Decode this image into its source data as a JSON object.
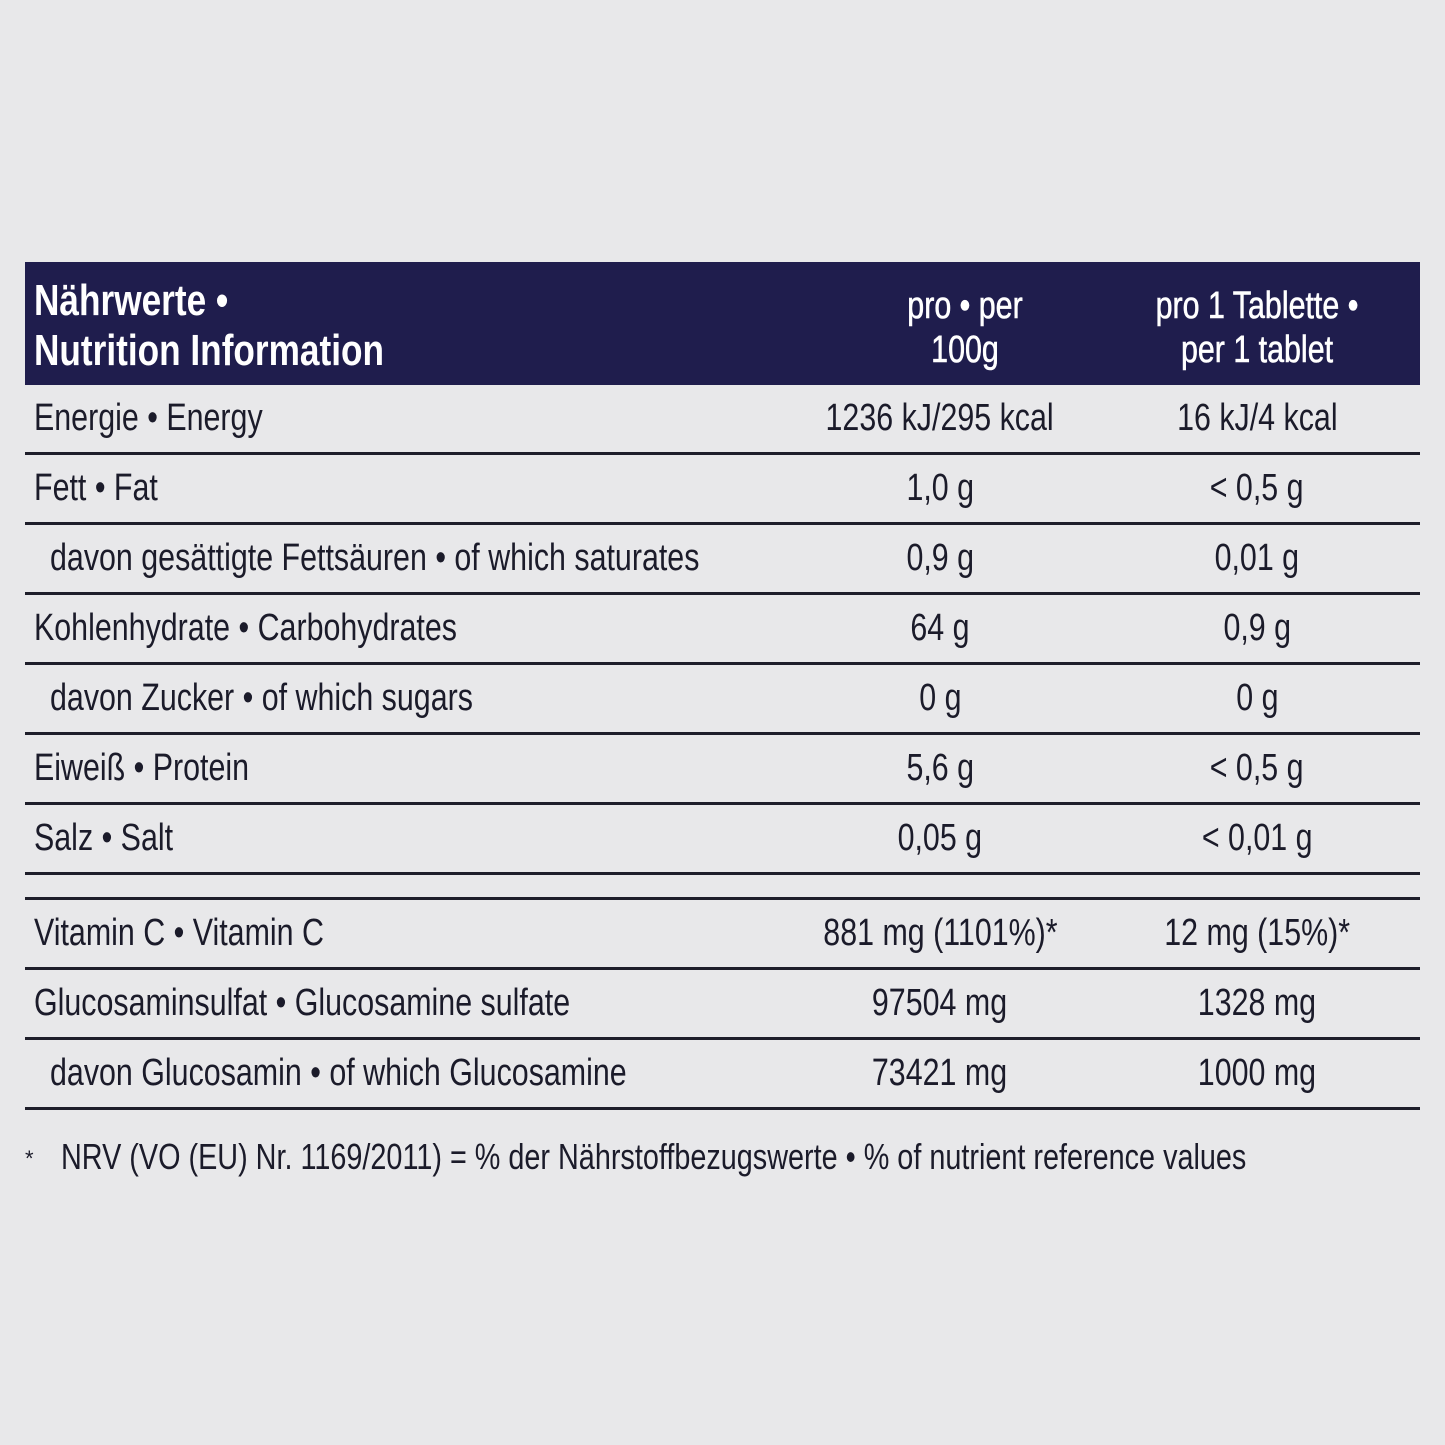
{
  "table": {
    "header": {
      "title": [
        "Nährwerte •",
        "Nutrition Information"
      ],
      "col1": [
        "pro • per",
        "100g"
      ],
      "col2": [
        "pro 1 Tablette •",
        "per 1 tablet"
      ]
    },
    "rows": [
      [
        "Energie • Energy",
        "1236 kJ/295 kcal",
        "16 kJ/4 kcal"
      ],
      [
        "Fett • Fat",
        "1,0 g",
        "< 0,5 g"
      ],
      [
        "davon gesättigte Fettsäuren • of which saturates",
        "0,9 g",
        "0,01 g"
      ],
      [
        "Kohlenhydrate • Carbohydrates",
        "64 g",
        "0,9 g"
      ],
      [
        "davon Zucker • of which sugars",
        "0 g",
        "0 g"
      ],
      [
        "Eiweiß • Protein",
        "5,6 g",
        "< 0,5 g"
      ],
      [
        "Salz • Salt",
        "0,05 g",
        "< 0,01 g"
      ]
    ],
    "rows2": [
      [
        "Vitamin C • Vitamin C",
        "881 mg (1101%)*",
        "12 mg (15%)*"
      ],
      [
        "Glucosaminsulfat • Glucosamine sulfate",
        "97504 mg",
        "1328 mg"
      ],
      [
        "davon Glucosamin • of which Glucosamine",
        "73421 mg",
        "1000 mg"
      ]
    ]
  },
  "footnote": {
    "mark": "*",
    "text": "NRV (VO (EU) Nr. 1169/2011) = % der Nährstoffbezugswerte • % of nutrient reference values"
  }
}
